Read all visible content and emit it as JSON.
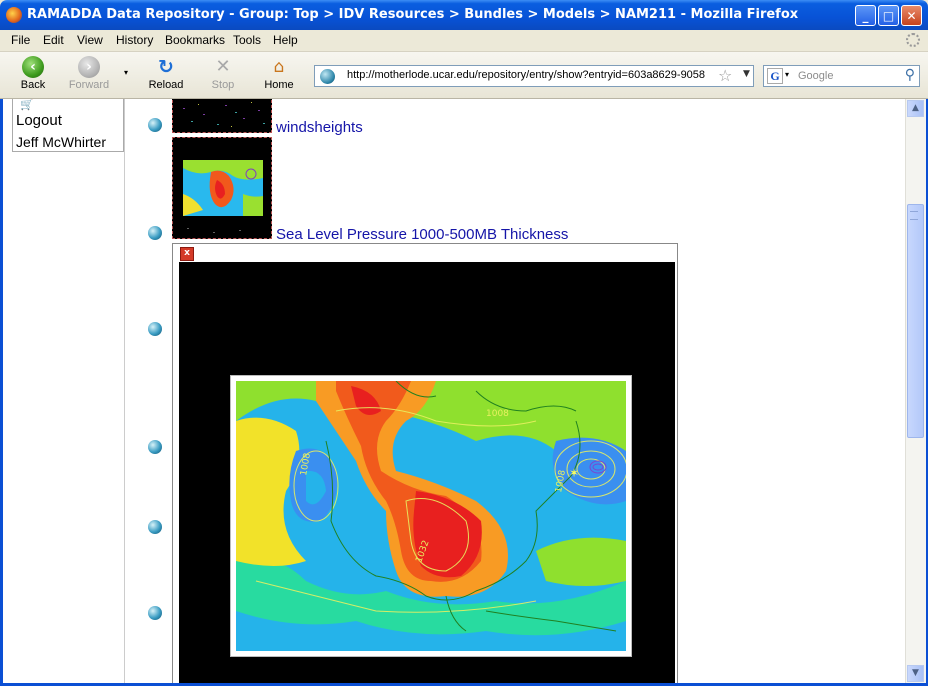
{
  "window": {
    "title": "RAMADDA Data Repository - Group: Top > IDV Resources > Bundles > Models > NAM211 - Mozilla Firefox",
    "minimize": "_",
    "maximize": "□",
    "close": "✕"
  },
  "menu": [
    "File",
    "Edit",
    "View",
    "History",
    "Bookmarks",
    "Tools",
    "Help"
  ],
  "toolbar": {
    "back": "Back",
    "forward": "Forward",
    "reload": "Reload",
    "stop": "Stop",
    "home": "Home"
  },
  "address": {
    "url": "http://motherlode.ucar.edu/repository/entry/show?entryid=603a8629-9058"
  },
  "search": {
    "engine": "G",
    "placeholder": "Google"
  },
  "sidebar": {
    "logout": "Logout",
    "user": "Jeff McWhirter"
  },
  "entries": [
    {
      "label": "windsheights"
    },
    {
      "label": "Sea Level Pressure 1000-500MB Thickness"
    }
  ],
  "popup": {
    "close": "x",
    "contour_labels": [
      "1008",
      "1008",
      "1008",
      "1032"
    ]
  },
  "colors": {
    "titlebar": "#0a5ee0",
    "link": "#1515a8",
    "bullet": "#3a9cc3",
    "close": "#d43a28"
  }
}
